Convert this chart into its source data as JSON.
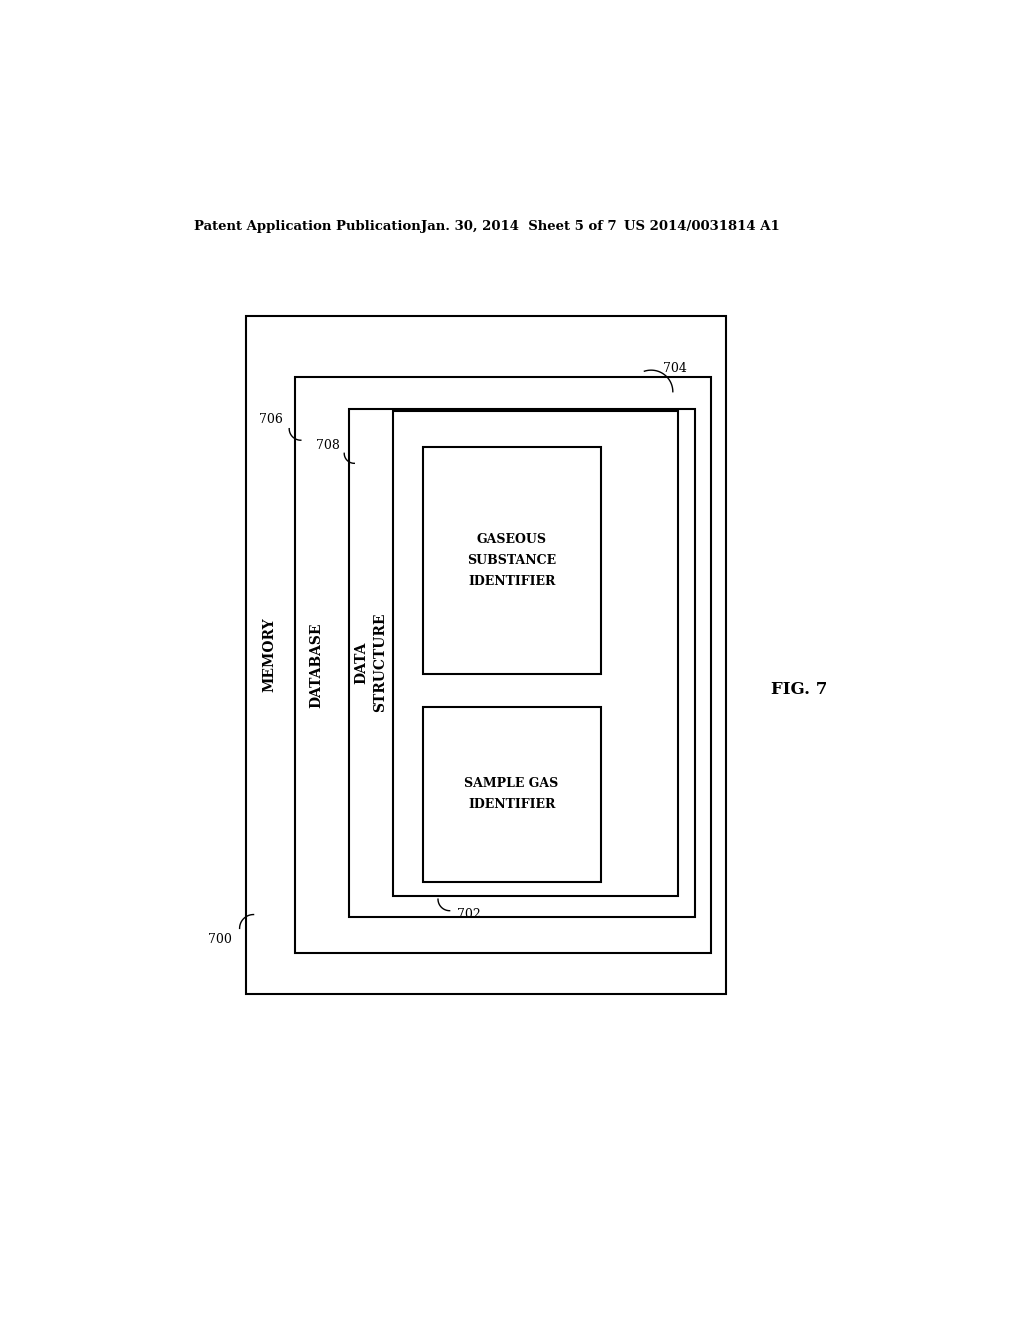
{
  "background_color": "#ffffff",
  "header_left": "Patent Application Publication",
  "header_mid": "Jan. 30, 2014  Sheet 5 of 7",
  "header_right": "US 2014/0031814 A1",
  "fig_label": "FIG. 7",
  "label_700": "700",
  "label_702": "702",
  "label_704": "704",
  "label_706": "706",
  "label_708": "708",
  "text_memory": "MEMORY",
  "text_database": "DATABASE",
  "text_data_structure": "DATA\nSTRUCTURE",
  "text_gaseous": "GASEOUS\nSUBSTANCE\nIDENTIFIER",
  "text_sample": "SAMPLE GAS\nIDENTIFIER",
  "box_color": "#000000",
  "line_width": 1.5,
  "font_size_label": 9,
  "font_size_inner": 9,
  "font_size_header": 9.5
}
